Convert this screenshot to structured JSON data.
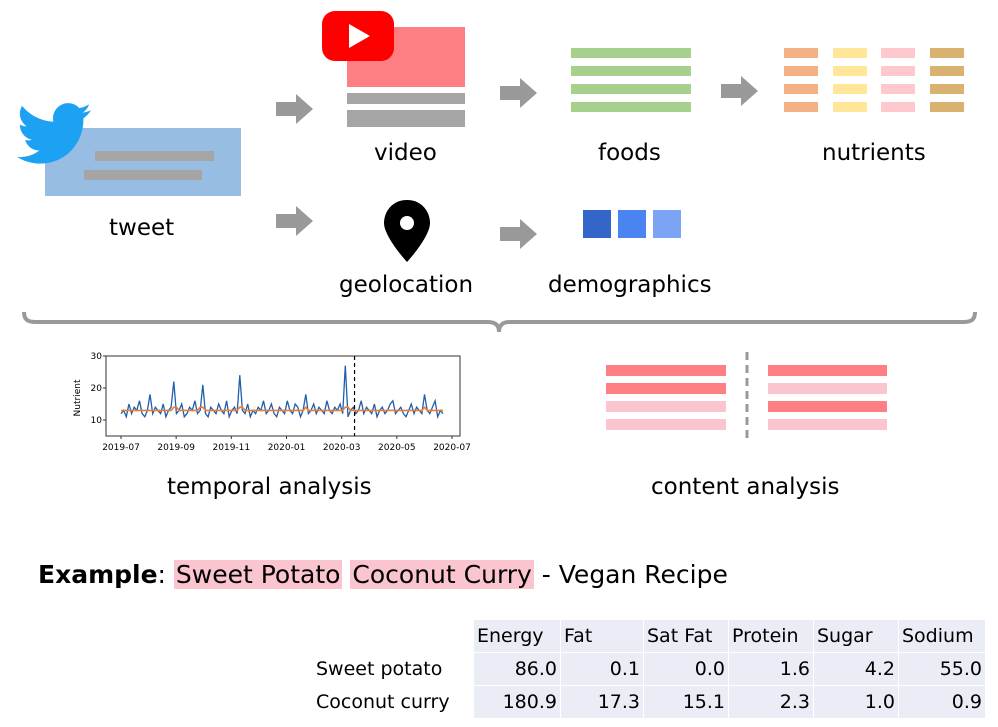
{
  "pipeline": {
    "tweet_label": "tweet",
    "video_label": "video",
    "foods_label": "foods",
    "nutrients_label": "nutrients",
    "geolocation_label": "geolocation",
    "demographics_label": "demographics"
  },
  "analysis": {
    "temporal_label": "temporal analysis",
    "content_label": "content analysis"
  },
  "chart_data": {
    "type": "line",
    "title": "",
    "xlabel": "",
    "ylabel": "Nutrient",
    "ylim": [
      5,
      30
    ],
    "yticks": [
      "10",
      "20",
      "30"
    ],
    "xticks": [
      "2019-07",
      "2019-09",
      "2019-11",
      "2020-01",
      "2020-03",
      "2020-05",
      "2020-07"
    ],
    "marker_date": "2020-03-15",
    "series": [
      {
        "values": [
          12,
          13,
          11,
          15,
          12,
          14,
          13,
          16,
          12,
          11,
          13,
          18,
          12,
          14,
          13,
          12,
          15,
          11,
          13,
          14,
          22,
          12,
          13,
          15,
          11,
          12,
          14,
          13,
          16,
          12,
          13,
          21,
          12,
          11,
          14,
          13,
          12,
          15,
          13,
          12,
          16,
          11,
          13,
          14,
          12,
          24,
          13,
          12,
          15,
          11,
          13,
          12,
          14,
          13,
          16,
          12,
          13,
          15,
          12,
          11,
          14,
          13,
          12,
          16,
          13,
          12,
          15,
          14,
          11,
          13,
          18,
          12,
          13,
          15,
          12,
          14,
          13,
          12,
          16,
          13,
          12,
          14,
          13,
          15,
          12,
          27,
          11,
          13,
          14,
          12,
          13,
          16,
          12,
          14,
          13,
          12,
          15,
          11,
          13,
          14,
          12,
          13,
          15,
          16,
          12,
          13,
          14,
          12,
          11,
          13,
          15,
          12,
          14,
          13,
          12,
          18,
          13,
          12,
          14,
          16,
          11,
          13,
          12
        ]
      },
      {
        "values": [
          13,
          13,
          13,
          13,
          13,
          13,
          13,
          13,
          13,
          13,
          13,
          13,
          13,
          13,
          13,
          13,
          13,
          13,
          13,
          13,
          14,
          14,
          13,
          13,
          13,
          13,
          13,
          13,
          13,
          13,
          14,
          14,
          13,
          13,
          13,
          13,
          13,
          13,
          13,
          13,
          13,
          13,
          13,
          13,
          13,
          14,
          14,
          13,
          13,
          13,
          13,
          13,
          13,
          13,
          13,
          13,
          13,
          13,
          13,
          13,
          13,
          13,
          13,
          13,
          13,
          13,
          13,
          13,
          13,
          13,
          14,
          13,
          13,
          13,
          13,
          13,
          13,
          13,
          13,
          13,
          13,
          13,
          13,
          13,
          13,
          14,
          14,
          13,
          13,
          13,
          13,
          13,
          13,
          13,
          13,
          13,
          13,
          13,
          13,
          13,
          13,
          13,
          13,
          13,
          13,
          13,
          13,
          13,
          13,
          13,
          13,
          13,
          13,
          13,
          13,
          14,
          13,
          13,
          13,
          13,
          13,
          13,
          13
        ]
      }
    ]
  },
  "example": {
    "label": "Example",
    "colon": ": ",
    "item1": "Sweet Potato",
    "item2": "Coconut Curry",
    "rest": " - Vegan Recipe"
  },
  "table": {
    "headers": [
      "Energy",
      "Fat",
      "Sat Fat",
      "Protein",
      "Sugar",
      "Sodium"
    ],
    "rows": [
      {
        "name": "Sweet potato",
        "values": [
          "86.0",
          "0.1",
          "0.0",
          "1.6",
          "4.2",
          "55.0"
        ]
      },
      {
        "name": "Coconut curry",
        "values": [
          "180.9",
          "17.3",
          "15.1",
          "2.3",
          "1.0",
          "0.9"
        ]
      }
    ]
  },
  "colors": {
    "twitter_blue": "#1da1f2",
    "tweet_box": "#97bde3",
    "video_box": "#fd7f83",
    "youtube_red": "#ff0000",
    "gray_bar": "#a5a5a5",
    "green_bar": "#a8d08d",
    "orange_bar": "#f4b183",
    "yellow_bar": "#ffe699",
    "pink_bar": "#ffc7ce",
    "tan_bar": "#d8b26e",
    "demo_dark": "#3465c9",
    "demo_mid": "#4b83f0",
    "demo_light": "#7ba5f4",
    "chart_line": "#1f5fad",
    "chart_smooth": "#ed7d31",
    "content_red": "#fd7f83",
    "content_pink": "#fbc5d0"
  }
}
